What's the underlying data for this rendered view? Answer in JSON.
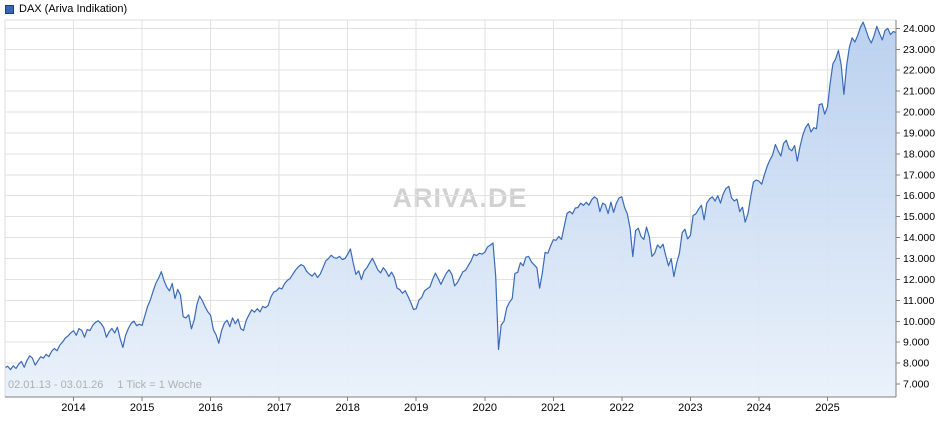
{
  "header": {
    "title": "DAX (Ariva Indikation)",
    "legend_color": "#3a66b0",
    "legend_border_color": "#16407c"
  },
  "watermark": "ARIVA.DE",
  "footer_note": {
    "range": "02.01.13 - 03.01.26",
    "tick_info": "1 Tick = 1 Woche"
  },
  "colors": {
    "line": "#3a6ab8",
    "fill_top": "#b5cdee",
    "fill_bottom": "#e9f1fa",
    "grid": "#e2e2e2",
    "axis": "#808080",
    "frame_light": "#dcdcdc",
    "note_text": "#b0b0b0",
    "watermark_text": "#c9c9c9"
  },
  "chart_data": {
    "type": "area",
    "title": "DAX (Ariva Indikation)",
    "series_name": "DAX",
    "x_unit": "year (weekly ticks, 1 Tick = 1 Woche)",
    "date_range": "02.01.13 - 03.01.26",
    "grid": true,
    "legend_position": "top-left",
    "xlim": [
      2013.0,
      2026.0
    ],
    "ylim": [
      6380,
      24400
    ],
    "x_start": 2013.0,
    "x_step": 0.04,
    "x_ticks": [
      2014,
      2015,
      2016,
      2017,
      2018,
      2019,
      2020,
      2021,
      2022,
      2023,
      2024,
      2025
    ],
    "x_tick_labels": [
      "2014",
      "2015",
      "2016",
      "2017",
      "2018",
      "2019",
      "2020",
      "2021",
      "2022",
      "2023",
      "2024",
      "2025"
    ],
    "y_ticks": [
      7000,
      8000,
      9000,
      10000,
      11000,
      12000,
      13000,
      14000,
      15000,
      16000,
      17000,
      18000,
      19000,
      20000,
      21000,
      22000,
      23000,
      24000
    ],
    "y_tick_labels": [
      "7.000",
      "8.000",
      "9.000",
      "10.000",
      "11.000",
      "12.000",
      "13.000",
      "14.000",
      "15.000",
      "16.000",
      "17.000",
      "18.000",
      "19.000",
      "20.000",
      "21.000",
      "22.000",
      "23.000",
      "24.000"
    ],
    "line_color": "#3a6ab8",
    "fill_top": "#b5cdee",
    "fill_bottom": "#e9f1fa",
    "values": [
      7780,
      7850,
      7690,
      7870,
      7740,
      7950,
      8080,
      7800,
      8120,
      8350,
      8240,
      7900,
      8110,
      8300,
      8240,
      8420,
      8310,
      8560,
      8700,
      8590,
      8860,
      9010,
      9200,
      9300,
      9450,
      9550,
      9330,
      9650,
      9560,
      9240,
      9600,
      9560,
      9800,
      9950,
      10020,
      9900,
      9700,
      9240,
      9500,
      9660,
      9440,
      9710,
      9180,
      8750,
      9330,
      9660,
      9900,
      10010,
      9790,
      9860,
      9800,
      10250,
      10710,
      11010,
      11420,
      11810,
      12050,
      12370,
      11950,
      11630,
      11450,
      11810,
      11090,
      11520,
      11240,
      10220,
      10160,
      10310,
      9640,
      10060,
      10800,
      11210,
      10980,
      10690,
      10450,
      10290,
      9590,
      9350,
      8950,
      9560,
      9900,
      10050,
      9740,
      10160,
      9880,
      10110,
      9640,
      9560,
      10050,
      10310,
      10550,
      10440,
      10600,
      10450,
      10710,
      10650,
      10760,
      11160,
      11400,
      11450,
      11600,
      11540,
      11800,
      11960,
      12040,
      12260,
      12450,
      12600,
      12710,
      12640,
      12390,
      12260,
      12160,
      12310,
      12090,
      12260,
      12560,
      12890,
      13000,
      13160,
      13040,
      13010,
      13100,
      12950,
      13000,
      13200,
      13460,
      12790,
      12240,
      12410,
      11990,
      12400,
      12560,
      12790,
      13010,
      12740,
      12460,
      12310,
      12560,
      12390,
      12140,
      12350,
      12100,
      11590,
      11510,
      11340,
      11460,
      11190,
      10900,
      10560,
      10600,
      11010,
      11140,
      11450,
      11550,
      11640,
      12010,
      12300,
      12040,
      11760,
      12040,
      12300,
      12460,
      12240,
      11690,
      11850,
      12100,
      12360,
      12440,
      12660,
      12890,
      13200,
      13140,
      13250,
      13210,
      13300,
      13550,
      13640,
      13740,
      12150,
      8650,
      9820,
      10000,
      10640,
      10900,
      11080,
      12290,
      12340,
      12800,
      12650,
      13060,
      13100,
      12840,
      12700,
      12560,
      11580,
      12300,
      13290,
      13250,
      13600,
      13900,
      13870,
      14050,
      13910,
      14560,
      15150,
      15250,
      15130,
      15410,
      15440,
      15650,
      15540,
      15690,
      15550,
      15810,
      15950,
      15850,
      15240,
      15650,
      15560,
      15150,
      15690,
      15210,
      15650,
      15890,
      15950,
      15440,
      15140,
      14440,
      13090,
      14340,
      14450,
      14050,
      13910,
      14500,
      14040,
      13100,
      13260,
      13650,
      13500,
      13690,
      13150,
      12650,
      12990,
      12140,
      12790,
      13250,
      14240,
      14400,
      13940,
      14100,
      15050,
      15140,
      15360,
      15550,
      14850,
      15650,
      15850,
      15950,
      15750,
      16000,
      15650,
      16100,
      16350,
      16450,
      15900,
      15750,
      15840,
      15240,
      15450,
      14740,
      15150,
      15950,
      16650,
      16750,
      16700,
      16550,
      17000,
      17400,
      17710,
      17950,
      18450,
      18150,
      17900,
      18500,
      18650,
      18250,
      18150,
      18400,
      17650,
      18350,
      18900,
      19250,
      19450,
      19050,
      19250,
      19200,
      20350,
      20400,
      19900,
      20250,
      21400,
      22300,
      22550,
      22950,
      22250,
      20850,
      22250,
      23100,
      23550,
      23350,
      23650,
      24050,
      24300,
      23950,
      23550,
      23300,
      23650,
      24100,
      23750,
      23450,
      23900,
      24000,
      23700,
      23850,
      23800
    ]
  }
}
